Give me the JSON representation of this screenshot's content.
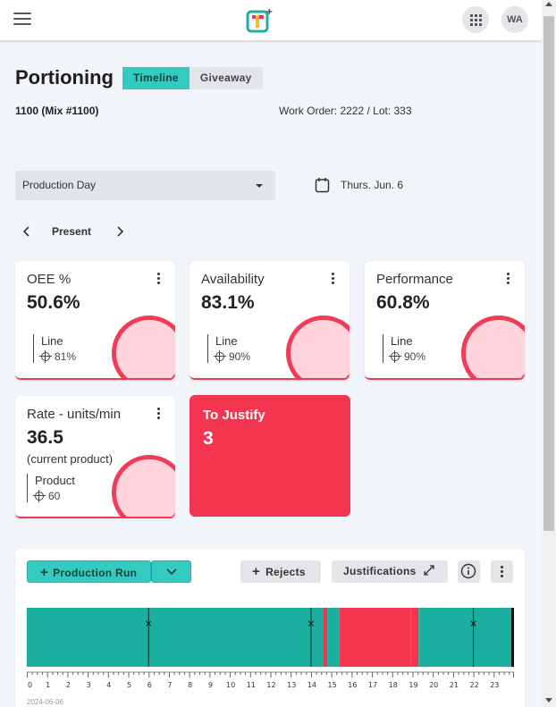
{
  "header": {
    "avatar_initials": "WA"
  },
  "page": {
    "title": "Portioning",
    "tabs": [
      {
        "label": "Timeline",
        "active": true
      },
      {
        "label": "Giveaway",
        "active": false
      }
    ],
    "subtitle": "1100 (Mix #1100)",
    "work_order": "Work Order: 2222 / Lot: 333"
  },
  "filters": {
    "period_select": "Production Day",
    "date": "Thurs. Jun. 6",
    "present_label": "Present"
  },
  "kpis": [
    {
      "title": "OEE %",
      "value": "50.6%",
      "ref_label": "Line",
      "target": "81%",
      "level": 0.506
    },
    {
      "title": "Availability",
      "value": "83.1%",
      "ref_label": "Line",
      "target": "90%",
      "level": 0.831
    },
    {
      "title": "Performance",
      "value": "60.8%",
      "ref_label": "Line",
      "target": "90%",
      "level": 0.608
    },
    {
      "title": "Rate - units/min",
      "value": "36.5",
      "note": "(current product)",
      "ref_label": "Product",
      "target": "60"
    }
  ],
  "justify": {
    "title": "To Justify",
    "count": "3"
  },
  "timeline": {
    "buttons": {
      "production_run": "Production Run",
      "rejects": "Rejects",
      "justifications": "Justifications"
    },
    "date_label": "2024-06-06",
    "hours": [
      "0",
      "1",
      "2",
      "3",
      "4",
      "5",
      "6",
      "7",
      "8",
      "9",
      "10",
      "11",
      "12",
      "13",
      "14",
      "15",
      "16",
      "17",
      "18",
      "19",
      "20",
      "21",
      "22",
      "23"
    ],
    "segments": [
      {
        "start": 0,
        "end": 14.6,
        "state": "running"
      },
      {
        "start": 14.6,
        "end": 14.8,
        "state": "down"
      },
      {
        "start": 14.8,
        "end": 15.4,
        "state": "running"
      },
      {
        "start": 15.4,
        "end": 18.9,
        "state": "down"
      },
      {
        "start": 18.9,
        "end": 19.3,
        "state": "down"
      },
      {
        "start": 19.3,
        "end": 24,
        "state": "running"
      }
    ],
    "markers": [
      6,
      14,
      22
    ],
    "colors": {
      "running": "#1aaf9f",
      "down": "#f3354f",
      "accent": "#33cbc1"
    }
  }
}
